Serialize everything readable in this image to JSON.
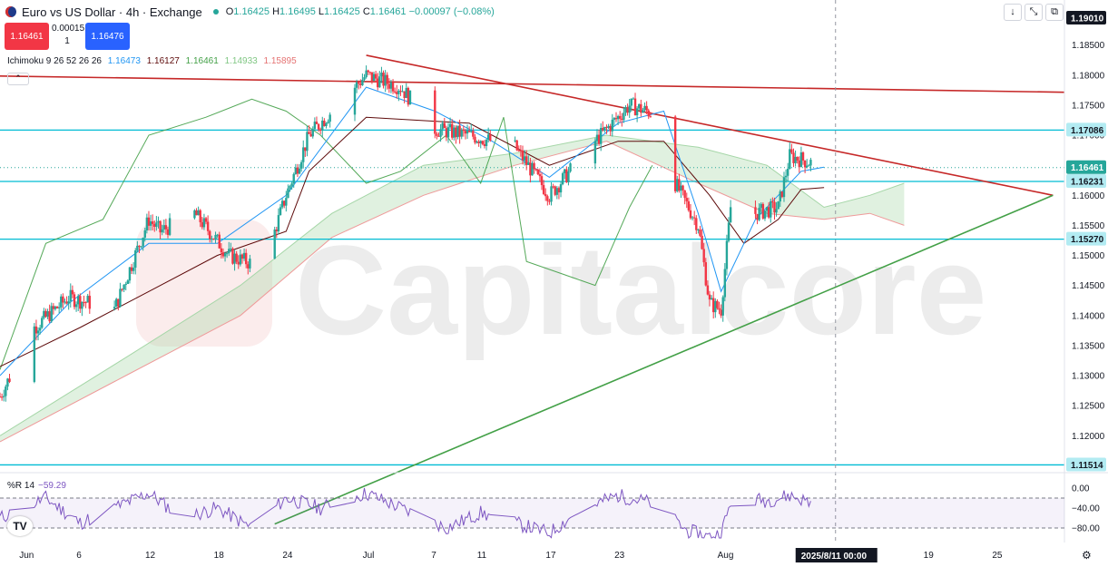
{
  "header": {
    "symbol_title": "Euro vs US Dollar · 4h · Exchange",
    "ohlc": {
      "o_label": "O",
      "o": "1.16425",
      "h_label": "H",
      "h": "1.16495",
      "l_label": "L",
      "l": "1.16425",
      "c_label": "C",
      "c": "1.16461",
      "change": "−0.00097 (−0.08%)"
    }
  },
  "trade": {
    "sell": "1.16461",
    "buy": "1.16476",
    "spread": "0.00015",
    "qty": "1"
  },
  "indicators": {
    "ichimoku": {
      "name": "Ichimoku 9 26 52 26 26",
      "v1": "1.16473",
      "v2": "1.16127",
      "v3": "1.16461",
      "v4": "1.14933",
      "v5": "1.15895",
      "c1": "#2196f3",
      "c2": "#5d0a0a",
      "c3": "#43a047",
      "c4": "#a5d6a7",
      "c5": "#ef9a9a"
    },
    "wpr": {
      "name": "%R 14",
      "value": "−59.29"
    }
  },
  "toolbar": {
    "down": "↓",
    "expand": "⤡",
    "screenshot": "⧉"
  },
  "watermark": "Capitalcore",
  "colors": {
    "up": "#26a69a",
    "down": "#f23645",
    "hline": "#00bcd4",
    "resistance": "#c62828",
    "support": "#43a047",
    "kijun": "#5d0a0a",
    "tenkan": "#2196f3",
    "chikou": "#43a047",
    "cloud_up": "#a5d6a7",
    "cloud_down": "#ef9a9a",
    "wpr": "#7e57c2"
  },
  "chart_data": {
    "type": "candlestick",
    "timeframe": "4h",
    "y_axis": {
      "min": 1.114,
      "max": 1.1925,
      "ticks": [
        "1.18500",
        "1.18000",
        "1.17500",
        "1.17000",
        "1.16500",
        "1.16000",
        "1.15500",
        "1.15000",
        "1.14500",
        "1.14000",
        "1.13500",
        "1.13000",
        "1.12500",
        "1.12000"
      ]
    },
    "x_axis": {
      "start": "2025-05-30",
      "end": "2025-08-31",
      "labels": [
        {
          "t": "2025-06-01",
          "text": "Jun"
        },
        {
          "t": "2025-06-06",
          "text": "6"
        },
        {
          "t": "2025-06-12",
          "text": "12"
        },
        {
          "t": "2025-06-18",
          "text": "18"
        },
        {
          "t": "2025-06-24",
          "text": "24"
        },
        {
          "t": "2025-07-01",
          "text": "Jul"
        },
        {
          "t": "2025-07-07",
          "text": "7"
        },
        {
          "t": "2025-07-11",
          "text": "11"
        },
        {
          "t": "2025-07-17",
          "text": "17"
        },
        {
          "t": "2025-07-23",
          "text": "23"
        },
        {
          "t": "2025-08-01",
          "text": "Aug"
        },
        {
          "t": "2025-08-19",
          "text": "19"
        },
        {
          "t": "2025-08-25",
          "text": "25"
        }
      ]
    },
    "crosshair": {
      "time": "2025/8/11  00:00",
      "price": "1.19010",
      "t": "2025-08-11"
    },
    "last_price": "1.16461",
    "horizontal_levels": [
      "1.17086",
      "1.16231",
      "1.15270",
      "1.11514"
    ],
    "trendlines": [
      {
        "name": "upper-resistance",
        "color": "resistance",
        "points": [
          {
            "t": "2025-05-30",
            "p": 1.17985
          },
          {
            "t": "2025-08-31",
            "p": 1.17715
          }
        ]
      },
      {
        "name": "descending-resistance",
        "color": "resistance",
        "points": [
          {
            "t": "2025-07-01",
            "p": 1.1833
          },
          {
            "t": "2025-08-30",
            "p": 1.16
          }
        ]
      },
      {
        "name": "ascending-support",
        "color": "support",
        "points": [
          {
            "t": "2025-06-23",
            "p": 1.1053
          },
          {
            "t": "2025-08-30",
            "p": 1.16
          }
        ]
      }
    ],
    "price_path": [
      [
        "2025-05-30",
        1.1265
      ],
      [
        "2025-06-02",
        1.138
      ],
      [
        "2025-06-05",
        1.143
      ],
      [
        "2025-06-09",
        1.141
      ],
      [
        "2025-06-12",
        1.156
      ],
      [
        "2025-06-13",
        1.154
      ],
      [
        "2025-06-16",
        1.157
      ],
      [
        "2025-06-19",
        1.15
      ],
      [
        "2025-06-22",
        1.148
      ],
      [
        "2025-06-24",
        1.16
      ],
      [
        "2025-06-26",
        1.17
      ],
      [
        "2025-06-30",
        1.178
      ],
      [
        "2025-07-01",
        1.18
      ],
      [
        "2025-07-04",
        1.178
      ],
      [
        "2025-07-07",
        1.171
      ],
      [
        "2025-07-10",
        1.17
      ],
      [
        "2025-07-14",
        1.168
      ],
      [
        "2025-07-17",
        1.16
      ],
      [
        "2025-07-21",
        1.169
      ],
      [
        "2025-07-24",
        1.175
      ],
      [
        "2025-07-27",
        1.173
      ],
      [
        "2025-07-28",
        1.162
      ],
      [
        "2025-07-30",
        1.155
      ],
      [
        "2025-07-31",
        1.142
      ],
      [
        "2025-08-01",
        1.141
      ],
      [
        "2025-08-01T20:00",
        1.158
      ],
      [
        "2025-08-04",
        1.157
      ],
      [
        "2025-08-06",
        1.158
      ],
      [
        "2025-08-07",
        1.1665
      ],
      [
        "2025-08-08",
        1.166
      ],
      [
        "2025-08-10",
        1.1646
      ]
    ],
    "kijun_path": [
      [
        "2025-05-30",
        1.1315
      ],
      [
        "2025-06-06",
        1.138
      ],
      [
        "2025-06-12",
        1.144
      ],
      [
        "2025-06-18",
        1.15
      ],
      [
        "2025-06-24",
        1.154
      ],
      [
        "2025-06-26",
        1.164
      ],
      [
        "2025-07-01",
        1.173
      ],
      [
        "2025-07-10",
        1.172
      ],
      [
        "2025-07-17",
        1.165
      ],
      [
        "2025-07-23",
        1.169
      ],
      [
        "2025-07-27",
        1.169
      ],
      [
        "2025-07-31",
        1.16
      ],
      [
        "2025-08-03",
        1.152
      ],
      [
        "2025-08-06",
        1.156
      ],
      [
        "2025-08-08",
        1.161
      ],
      [
        "2025-08-10",
        1.1613
      ]
    ],
    "tenkan_path": [
      [
        "2025-05-30",
        1.13
      ],
      [
        "2025-06-05",
        1.142
      ],
      [
        "2025-06-12",
        1.152
      ],
      [
        "2025-06-18",
        1.152
      ],
      [
        "2025-06-24",
        1.16
      ],
      [
        "2025-07-01",
        1.178
      ],
      [
        "2025-07-07",
        1.174
      ],
      [
        "2025-07-12",
        1.169
      ],
      [
        "2025-07-17",
        1.163
      ],
      [
        "2025-07-23",
        1.172
      ],
      [
        "2025-07-27",
        1.174
      ],
      [
        "2025-07-30",
        1.157
      ],
      [
        "2025-08-01",
        1.144
      ],
      [
        "2025-08-04",
        1.156
      ],
      [
        "2025-08-08",
        1.164
      ],
      [
        "2025-08-10",
        1.1647
      ]
    ],
    "chikou_path": [
      [
        "2025-05-30",
        1.131
      ],
      [
        "2025-06-03",
        1.152
      ],
      [
        "2025-06-08",
        1.156
      ],
      [
        "2025-06-12",
        1.17
      ],
      [
        "2025-06-17",
        1.173
      ],
      [
        "2025-06-21",
        1.176
      ],
      [
        "2025-06-24",
        1.174
      ],
      [
        "2025-06-27",
        1.17
      ],
      [
        "2025-07-01",
        1.162
      ],
      [
        "2025-07-04",
        1.164
      ],
      [
        "2025-07-08",
        1.17
      ],
      [
        "2025-07-11",
        1.162
      ],
      [
        "2025-07-13",
        1.173
      ],
      [
        "2025-07-15",
        1.149
      ],
      [
        "2025-07-18",
        1.147
      ],
      [
        "2025-07-21",
        1.145
      ],
      [
        "2025-07-24",
        1.158
      ],
      [
        "2025-07-26",
        1.165
      ]
    ],
    "cloud": {
      "span_a": [
        [
          "2025-05-30",
          1.12
        ],
        [
          "2025-06-10",
          1.133
        ],
        [
          "2025-06-20",
          1.145
        ],
        [
          "2025-06-28",
          1.157
        ],
        [
          "2025-07-06",
          1.165
        ],
        [
          "2025-07-14",
          1.167
        ],
        [
          "2025-07-22",
          1.17
        ],
        [
          "2025-07-30",
          1.168
        ],
        [
          "2025-08-05",
          1.165
        ],
        [
          "2025-08-10",
          1.158
        ],
        [
          "2025-08-14",
          1.16
        ],
        [
          "2025-08-17",
          1.162
        ]
      ],
      "span_b": [
        [
          "2025-05-30",
          1.119
        ],
        [
          "2025-06-10",
          1.13
        ],
        [
          "2025-06-20",
          1.14
        ],
        [
          "2025-06-28",
          1.153
        ],
        [
          "2025-07-06",
          1.16
        ],
        [
          "2025-07-14",
          1.165
        ],
        [
          "2025-07-22",
          1.169
        ],
        [
          "2025-07-30",
          1.162
        ],
        [
          "2025-08-05",
          1.157
        ],
        [
          "2025-08-10",
          1.156
        ],
        [
          "2025-08-14",
          1.157
        ],
        [
          "2025-08-17",
          1.155
        ]
      ]
    },
    "wpr": {
      "min": -100,
      "max": 0,
      "ticks": [
        "0.00",
        "−40.00",
        "−80.00"
      ],
      "levels": [
        -20,
        -80
      ],
      "path": [
        [
          "2025-05-30",
          -60
        ],
        [
          "2025-06-03",
          -20
        ],
        [
          "2025-06-06",
          -70
        ],
        [
          "2025-06-10",
          -30
        ],
        [
          "2025-06-12",
          -10
        ],
        [
          "2025-06-15",
          -60
        ],
        [
          "2025-06-18",
          -40
        ],
        [
          "2025-06-21",
          -80
        ],
        [
          "2025-06-24",
          -20
        ],
        [
          "2025-06-27",
          -40
        ],
        [
          "2025-07-01",
          -10
        ],
        [
          "2025-07-04",
          -40
        ],
        [
          "2025-07-08",
          -80
        ],
        [
          "2025-07-11",
          -50
        ],
        [
          "2025-07-14",
          -70
        ],
        [
          "2025-07-17",
          -90
        ],
        [
          "2025-07-20",
          -40
        ],
        [
          "2025-07-23",
          -15
        ],
        [
          "2025-07-26",
          -30
        ],
        [
          "2025-07-29",
          -85
        ],
        [
          "2025-07-31",
          -98
        ],
        [
          "2025-08-01",
          -90
        ],
        [
          "2025-08-02",
          -20
        ],
        [
          "2025-08-05",
          -25
        ],
        [
          "2025-08-07",
          -15
        ],
        [
          "2025-08-09",
          -30
        ],
        [
          "2025-08-10",
          -59.29
        ]
      ]
    }
  }
}
